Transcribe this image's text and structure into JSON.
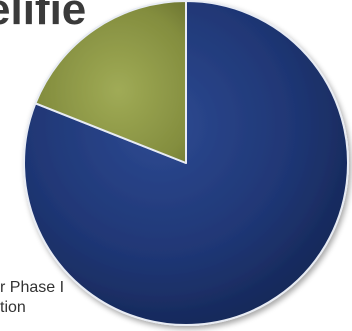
{
  "title_fragment": "elifie",
  "legend_fragment_lines": [
    "r Phase I",
    "tion"
  ],
  "chart_data": {
    "type": "pie",
    "title": "",
    "start_angle_deg": 0,
    "direction": "clockwise",
    "slices": [
      {
        "value": 81,
        "color": "#1f3674"
      },
      {
        "value": 19,
        "color": "#8a9443"
      }
    ],
    "legend": "bottom-left"
  }
}
